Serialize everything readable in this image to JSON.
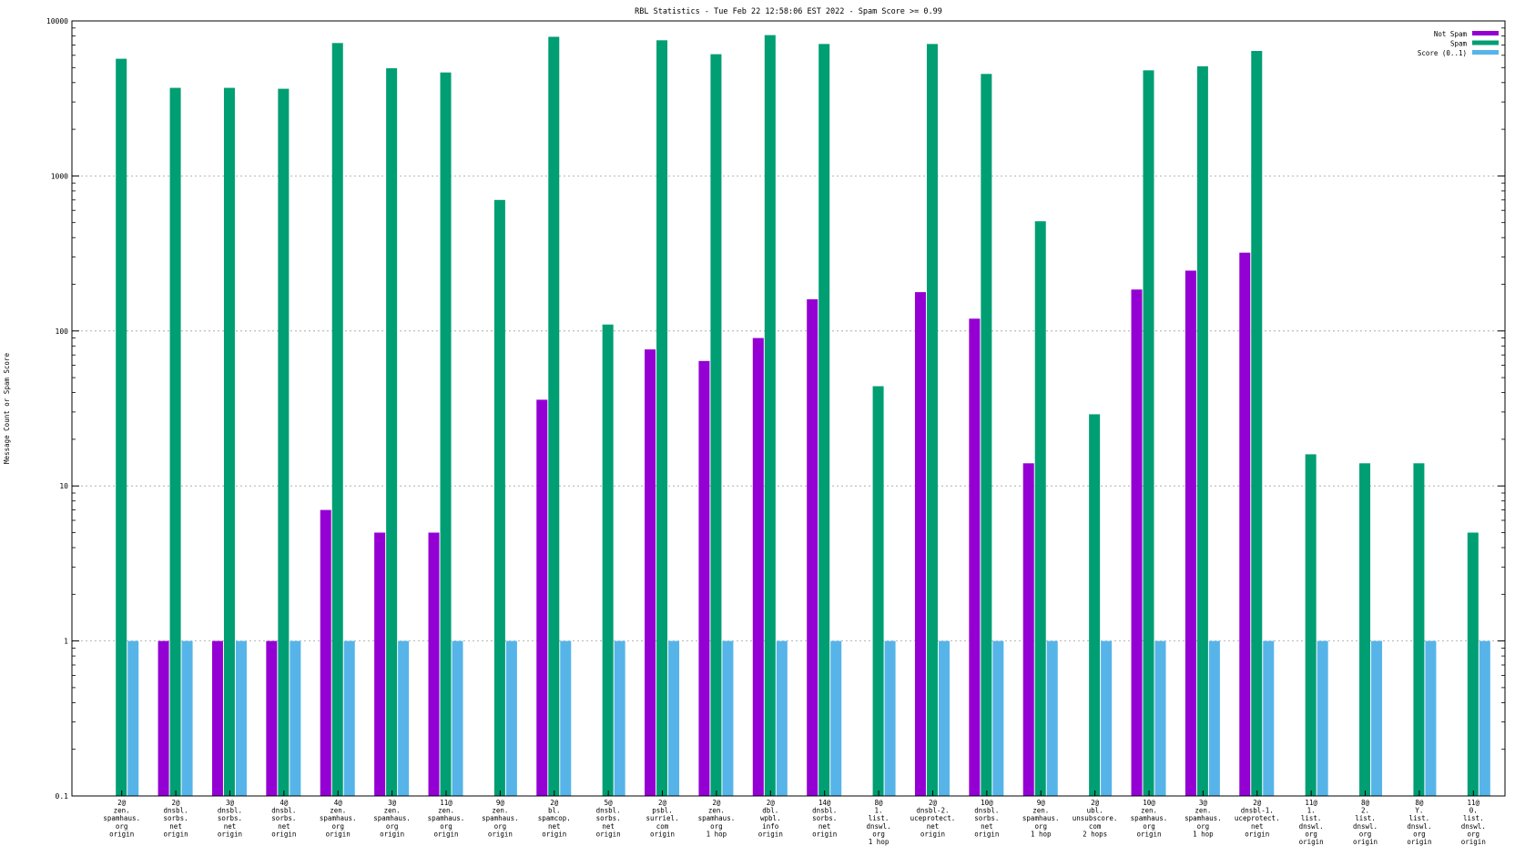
{
  "chart_data": {
    "type": "bar",
    "title": "RBL Statistics - Tue Feb 22 12:58:06 EST 2022 - Spam Score >= 0.99",
    "ylabel": "Message Count or Spam Score",
    "xlabel": "",
    "yscale": "log",
    "ylim": [
      0.1,
      10000
    ],
    "yticks": [
      "0.1",
      "1",
      "10",
      "100",
      "1000",
      "10000"
    ],
    "grid": true,
    "legend_position": "top-right",
    "categories": [
      [
        "2@",
        "zen.",
        "spamhaus.",
        "org",
        "origin"
      ],
      [
        "2@",
        "dnsbl.",
        "sorbs.",
        "net",
        "origin"
      ],
      [
        "3@",
        "dnsbl.",
        "sorbs.",
        "net",
        "origin"
      ],
      [
        "4@",
        "dnsbl.",
        "sorbs.",
        "net",
        "origin"
      ],
      [
        "4@",
        "zen.",
        "spamhaus.",
        "org",
        "origin"
      ],
      [
        "3@",
        "zen.",
        "spamhaus.",
        "org",
        "origin"
      ],
      [
        "11@",
        "zen.",
        "spamhaus.",
        "org",
        "origin"
      ],
      [
        "9@",
        "zen.",
        "spamhaus.",
        "org",
        "origin"
      ],
      [
        "2@",
        "bl.",
        "spamcop.",
        "net",
        "origin"
      ],
      [
        "5@",
        "dnsbl.",
        "sorbs.",
        "net",
        "origin"
      ],
      [
        "2@",
        "psbl.",
        "surriel.",
        "com",
        "origin"
      ],
      [
        "2@",
        "zen.",
        "spamhaus.",
        "org",
        "1 hop"
      ],
      [
        "2@",
        "dbl.",
        "wpbl.",
        "info",
        "origin"
      ],
      [
        "14@",
        "dnsbl.",
        "sorbs.",
        "net",
        "origin"
      ],
      [
        "8@",
        "1.",
        "list.",
        "dnswl.",
        "org",
        "1 hop"
      ],
      [
        "2@",
        "dnsbl-2.",
        "uceprotect.",
        "net",
        "origin"
      ],
      [
        "10@",
        "dnsbl.",
        "sorbs.",
        "net",
        "origin"
      ],
      [
        "9@",
        "zen.",
        "spamhaus.",
        "org",
        "1 hop"
      ],
      [
        "2@",
        "ubl.",
        "unsubscore.",
        "com",
        "2 hops"
      ],
      [
        "10@",
        "zen.",
        "spamhaus.",
        "org",
        "origin"
      ],
      [
        "3@",
        "zen.",
        "spamhaus.",
        "org",
        "1 hop"
      ],
      [
        "2@",
        "dnsbl-1.",
        "uceprotect.",
        "net",
        "origin"
      ],
      [
        "11@",
        "1.",
        "list.",
        "dnswl.",
        "org",
        "origin"
      ],
      [
        "8@",
        "2.",
        "list.",
        "dnswl.",
        "org",
        "origin"
      ],
      [
        "8@",
        "Y.",
        "list.",
        "dnswl.",
        "org",
        "origin"
      ],
      [
        "11@",
        "0.",
        "list.",
        "dnswl.",
        "org",
        "origin"
      ]
    ],
    "series": [
      {
        "name": "Not Spam",
        "color": "#9400d3",
        "values": [
          0,
          1,
          1,
          1,
          7,
          5,
          5,
          0,
          36,
          0,
          76,
          64,
          90,
          160,
          0,
          178,
          120,
          14,
          0,
          185,
          245,
          320,
          0,
          0,
          0,
          0
        ]
      },
      {
        "name": "Spam",
        "color": "#009e73",
        "values": [
          5700,
          3700,
          3700,
          3650,
          7200,
          4950,
          4650,
          700,
          7900,
          110,
          7500,
          6100,
          8100,
          7100,
          44,
          7100,
          4550,
          510,
          29,
          4800,
          5100,
          6400,
          16,
          14,
          14,
          5
        ]
      },
      {
        "name": "Score (0..1)",
        "color": "#56b4e9",
        "values": [
          1,
          1,
          1,
          1,
          1,
          1,
          1,
          1,
          1,
          1,
          1,
          1,
          1,
          1,
          1,
          1,
          1,
          1,
          1,
          1,
          1,
          1,
          1,
          1,
          1,
          1
        ]
      }
    ]
  }
}
